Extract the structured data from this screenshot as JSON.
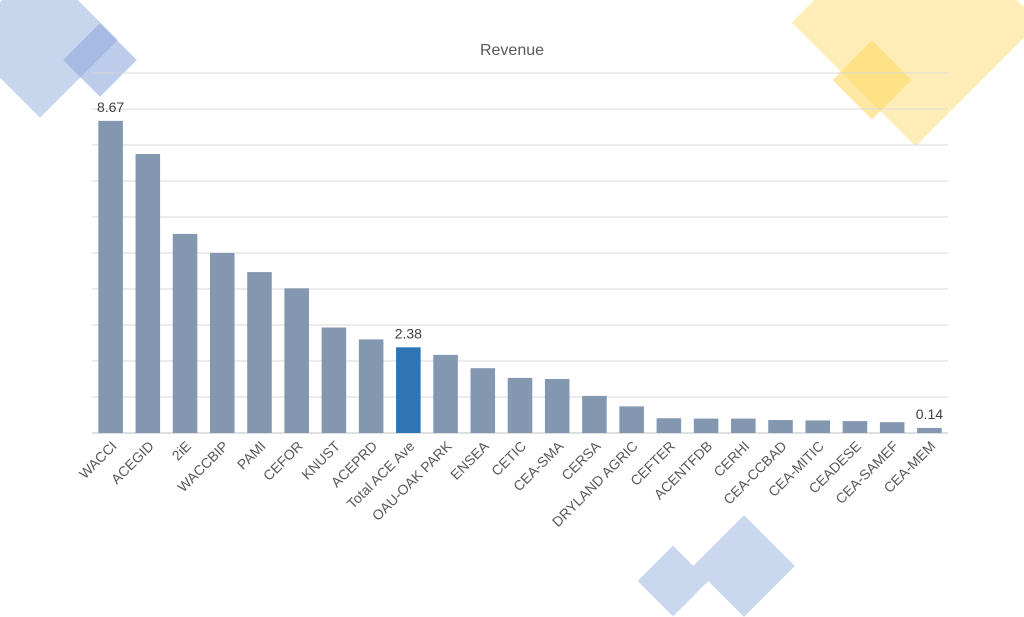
{
  "chart_data": {
    "type": "bar",
    "title": "Revenue",
    "xlabel": "",
    "ylabel": "",
    "ylim": [
      0,
      10
    ],
    "grid": true,
    "legend": "none",
    "categories": [
      "WACCI",
      "ACEGID",
      "2iE",
      "WACCBIP",
      "PAMI",
      "CEFOR",
      "KNUST",
      "ACEPRD",
      "Total ACE Ave",
      "OAU-OAK PARK",
      "ENSEA",
      "CETIC",
      "CEA-SMA",
      "CERSA",
      "DRYLAND AGRIC",
      "CEFTER",
      "ACENTFDB",
      "CERHI",
      "CEA-CCBAD",
      "CEA-MITIC",
      "CEADESE",
      "CEA-SAMEF",
      "CEA-MEM"
    ],
    "values": [
      8.67,
      7.75,
      5.53,
      5.0,
      4.47,
      4.02,
      2.93,
      2.6,
      2.38,
      2.17,
      1.8,
      1.53,
      1.5,
      1.03,
      0.74,
      0.41,
      0.4,
      0.4,
      0.36,
      0.35,
      0.33,
      0.3,
      0.14
    ],
    "highlight_category": "Total ACE Ave",
    "data_labels": [
      {
        "category": "WACCI",
        "text": "8.67"
      },
      {
        "category": "Total ACE Ave",
        "text": "2.38"
      },
      {
        "category": "CEA-MEM",
        "text": "0.14"
      }
    ],
    "colors": {
      "bar": "#8497b0",
      "highlight": "#2e75b6",
      "grid": "#d9d9d9",
      "axis": "#bfbfbf"
    }
  },
  "decorations": {
    "colors": {
      "blue": "#b4c7e7",
      "blue_dark": "#8faadc",
      "yellow": "#ffe699",
      "yellow_dark": "#ffd966"
    }
  }
}
